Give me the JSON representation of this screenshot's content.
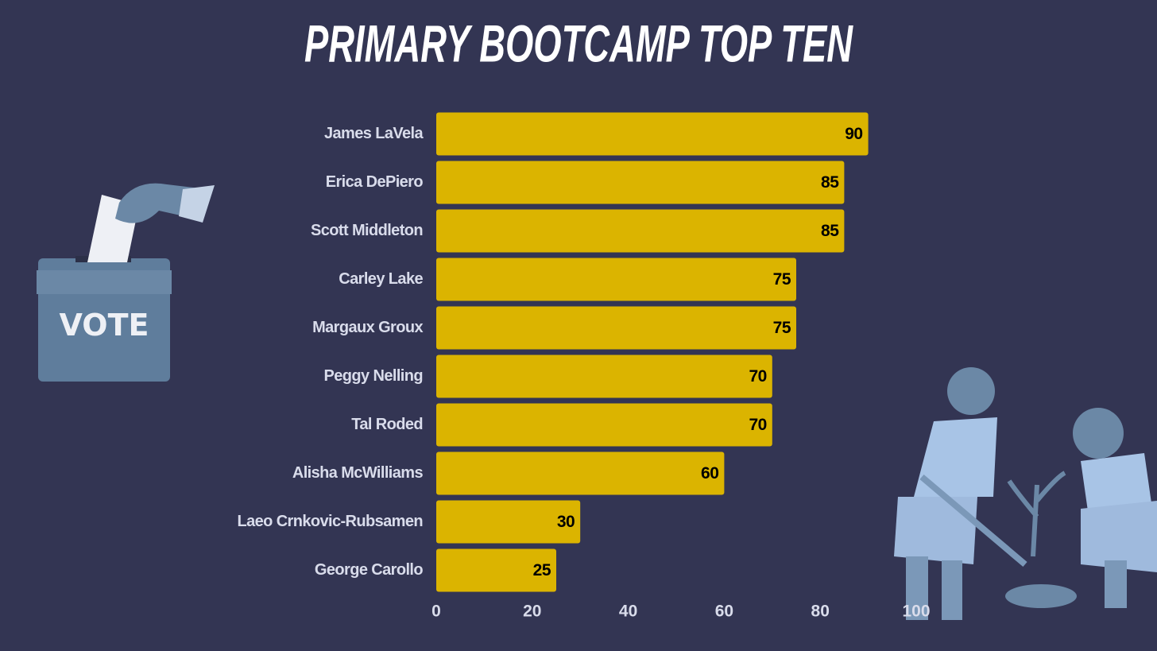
{
  "chart_data": {
    "type": "bar",
    "orientation": "horizontal",
    "title": "PRIMARY BOOTCAMP TOP TEN",
    "categories": [
      "James LaVela",
      "Erica DePiero",
      "Scott Middleton",
      "Carley Lake",
      "Margaux Groux",
      "Peggy Nelling",
      "Tal Roded",
      "Alisha McWilliams",
      "Laeo Crnkovic-Rubsamen",
      "George Carollo"
    ],
    "values": [
      90,
      85,
      85,
      75,
      75,
      70,
      70,
      60,
      30,
      25
    ],
    "color": "#dbb400",
    "xlim": [
      0,
      100
    ],
    "xticks": [
      0,
      20,
      40,
      60,
      80,
      100
    ],
    "grid": false
  }
}
